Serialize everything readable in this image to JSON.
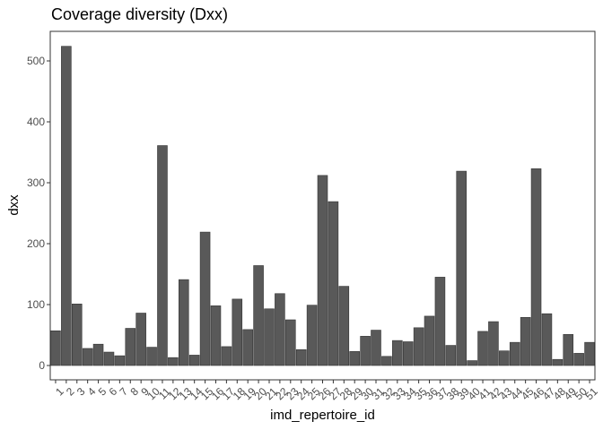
{
  "chart_data": {
    "type": "bar",
    "title": "Coverage diversity (Dxx)",
    "xlabel": "imd_repertoire_id",
    "ylabel": "dxx",
    "categories": [
      "1",
      "2",
      "3",
      "4",
      "5",
      "6",
      "7",
      "8",
      "9",
      "10",
      "11",
      "12",
      "13",
      "14",
      "15",
      "16",
      "17",
      "18",
      "19",
      "20",
      "21",
      "22",
      "23",
      "24",
      "25",
      "26",
      "27",
      "28",
      "29",
      "30",
      "31",
      "32",
      "33",
      "34",
      "35",
      "36",
      "37",
      "38",
      "39",
      "40",
      "41",
      "42",
      "43",
      "44",
      "45",
      "46",
      "47",
      "48",
      "49",
      "50",
      "51"
    ],
    "values": [
      57,
      524,
      101,
      28,
      35,
      22,
      16,
      61,
      86,
      30,
      361,
      13,
      141,
      17,
      219,
      98,
      31,
      109,
      59,
      164,
      93,
      118,
      75,
      26,
      99,
      312,
      269,
      130,
      23,
      48,
      58,
      15,
      41,
      39,
      62,
      81,
      145,
      33,
      319,
      8,
      56,
      72,
      24,
      38,
      79,
      323,
      85,
      10,
      51,
      20,
      38
    ],
    "ylim": [
      -25,
      550
    ],
    "yticks": [
      0,
      100,
      200,
      300,
      400,
      500
    ],
    "bar_color": "#595959",
    "bar_outline": "#333333",
    "panel_border": "#333333",
    "grid": false,
    "legend": "none"
  }
}
